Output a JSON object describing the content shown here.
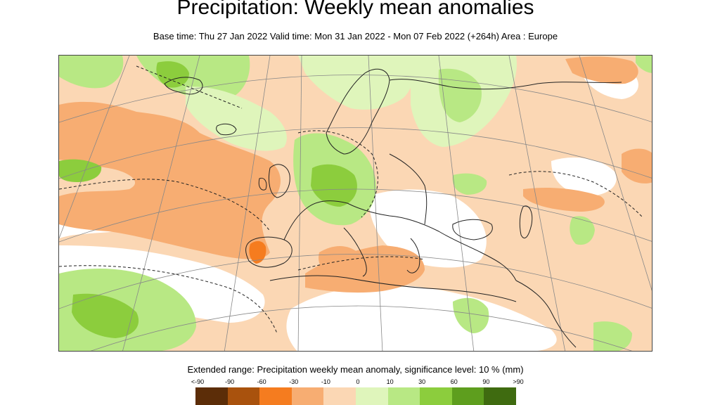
{
  "header": {
    "title": "Precipitation: Weekly mean anomalies",
    "subtitle": "Base time: Thu 27 Jan 2022 Valid time: Mon 31 Jan 2022 - Mon 07 Feb 2022 (+264h) Area : Europe"
  },
  "legend": {
    "title": "Extended range: Precipitation weekly mean anomaly, significance level: 10 % (mm)",
    "ticks": [
      "<-90",
      "-90",
      "-60",
      "-30",
      "-10",
      "0",
      "10",
      "30",
      "60",
      "90",
      ">90"
    ],
    "swatches": [
      {
        "name": "below-minus-90",
        "color": "#5c2d08"
      },
      {
        "name": "minus-90-to-minus-60",
        "color": "#a9520d"
      },
      {
        "name": "minus-60-to-minus-30",
        "color": "#f57c1f"
      },
      {
        "name": "minus-30-to-minus-10",
        "color": "#f7ad72"
      },
      {
        "name": "minus-10-to-0",
        "color": "#fbd7b4"
      },
      {
        "name": "0-to-10",
        "color": "#dff5bb"
      },
      {
        "name": "10-to-30",
        "color": "#b8e884"
      },
      {
        "name": "30-to-60",
        "color": "#8ccd3d"
      },
      {
        "name": "60-to-90",
        "color": "#5e9e1e"
      },
      {
        "name": "above-90",
        "color": "#3f6b10"
      }
    ]
  },
  "map": {
    "area": "Europe",
    "colors": {
      "dry_light": "#fbd7b4",
      "dry_mid": "#f7ad72",
      "dry_strong": "#f57c1f",
      "wet_light": "#dff5bb",
      "wet_mid": "#b8e884",
      "wet_strong": "#8ccd3d",
      "coast": "#222222",
      "grid": "#888888"
    }
  }
}
